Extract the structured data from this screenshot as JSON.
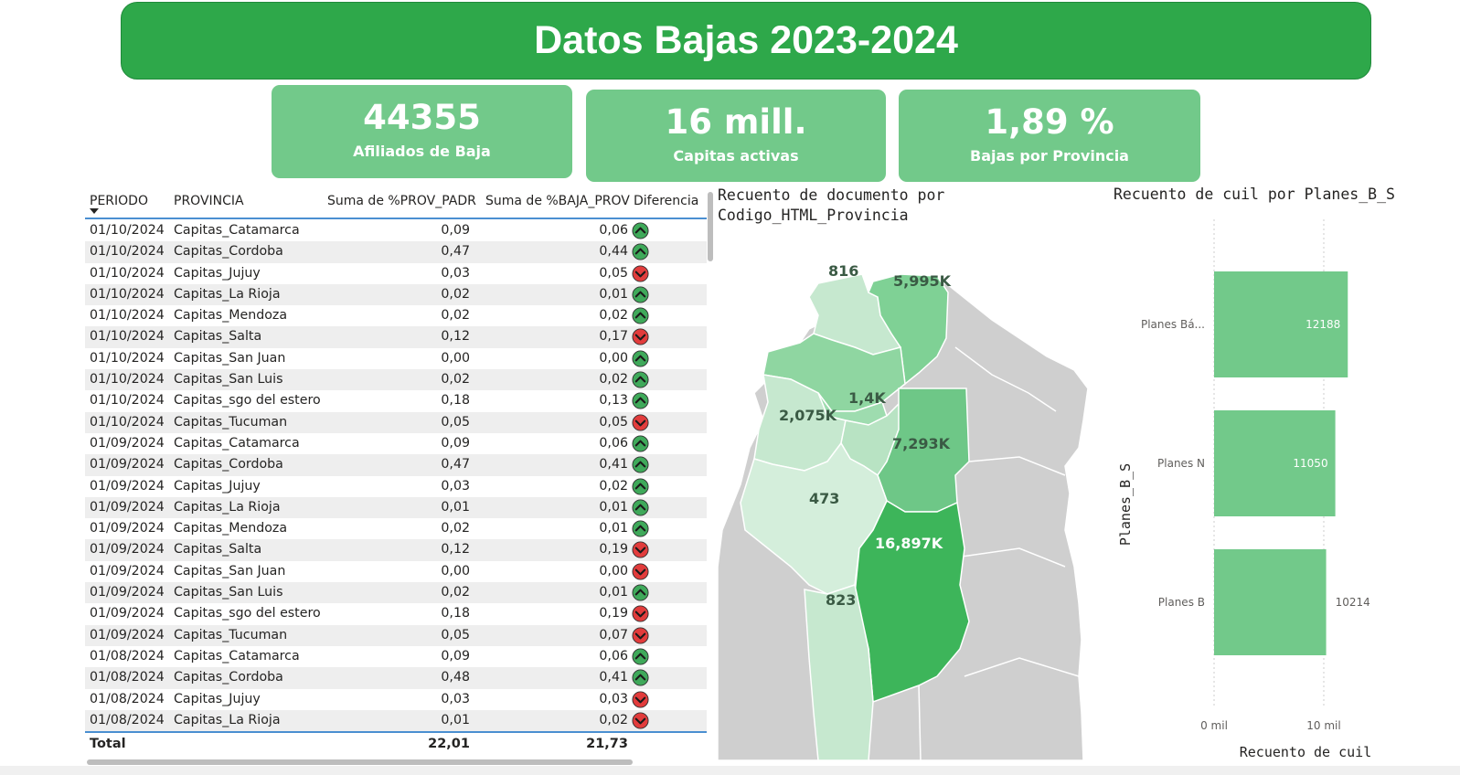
{
  "title": "Datos Bajas 2023-2024",
  "kpis": [
    {
      "value": "44355",
      "label": "Afiliados de Baja"
    },
    {
      "value": "16 mill.",
      "label": "Capitas activas"
    },
    {
      "value": "1,89 %",
      "label": "Bajas por Provincia"
    }
  ],
  "table": {
    "headers": [
      "PERIODO",
      "PROVINCIA",
      "Suma de %PROV_PADR",
      "Suma de %BAJA_PROV",
      "Diferencia"
    ],
    "rows": [
      [
        "01/10/2024",
        "Capitas_Catamarca",
        "0,09",
        "0,06",
        "up"
      ],
      [
        "01/10/2024",
        "Capitas_Cordoba",
        "0,47",
        "0,44",
        "up"
      ],
      [
        "01/10/2024",
        "Capitas_Jujuy",
        "0,03",
        "0,05",
        "down"
      ],
      [
        "01/10/2024",
        "Capitas_La Rioja",
        "0,02",
        "0,01",
        "up"
      ],
      [
        "01/10/2024",
        "Capitas_Mendoza",
        "0,02",
        "0,02",
        "up"
      ],
      [
        "01/10/2024",
        "Capitas_Salta",
        "0,12",
        "0,17",
        "down"
      ],
      [
        "01/10/2024",
        "Capitas_San Juan",
        "0,00",
        "0,00",
        "up"
      ],
      [
        "01/10/2024",
        "Capitas_San Luis",
        "0,02",
        "0,02",
        "up"
      ],
      [
        "01/10/2024",
        "Capitas_sgo del estero",
        "0,18",
        "0,13",
        "up"
      ],
      [
        "01/10/2024",
        "Capitas_Tucuman",
        "0,05",
        "0,05",
        "down"
      ],
      [
        "01/09/2024",
        "Capitas_Catamarca",
        "0,09",
        "0,06",
        "up"
      ],
      [
        "01/09/2024",
        "Capitas_Cordoba",
        "0,47",
        "0,41",
        "up"
      ],
      [
        "01/09/2024",
        "Capitas_Jujuy",
        "0,03",
        "0,02",
        "up"
      ],
      [
        "01/09/2024",
        "Capitas_La Rioja",
        "0,01",
        "0,01",
        "up"
      ],
      [
        "01/09/2024",
        "Capitas_Mendoza",
        "0,02",
        "0,01",
        "up"
      ],
      [
        "01/09/2024",
        "Capitas_Salta",
        "0,12",
        "0,19",
        "down"
      ],
      [
        "01/09/2024",
        "Capitas_San Juan",
        "0,00",
        "0,00",
        "down"
      ],
      [
        "01/09/2024",
        "Capitas_San Luis",
        "0,02",
        "0,01",
        "up"
      ],
      [
        "01/09/2024",
        "Capitas_sgo del estero",
        "0,18",
        "0,19",
        "down"
      ],
      [
        "01/09/2024",
        "Capitas_Tucuman",
        "0,05",
        "0,07",
        "down"
      ],
      [
        "01/08/2024",
        "Capitas_Catamarca",
        "0,09",
        "0,06",
        "up"
      ],
      [
        "01/08/2024",
        "Capitas_Cordoba",
        "0,48",
        "0,41",
        "up"
      ],
      [
        "01/08/2024",
        "Capitas_Jujuy",
        "0,03",
        "0,03",
        "down"
      ],
      [
        "01/08/2024",
        "Capitas_La Rioja",
        "0,01",
        "0,02",
        "down"
      ]
    ],
    "total": {
      "label": "Total",
      "a": "22,01",
      "b": "21,73"
    }
  },
  "map": {
    "title_line1": "Recuento de documento por",
    "title_line2": "Codigo_HTML_Provincia",
    "labels": [
      "816",
      "5,995K",
      "1,4K",
      "2,075K",
      "7,293K",
      "473",
      "16,897K",
      "823"
    ]
  },
  "bar": {
    "title": "Recuento de cuil por Planes_B_S",
    "ylabel": "Planes_B_S",
    "xlabel": "Recuento de cuil",
    "ticks": [
      "0 mil",
      "10 mil"
    ]
  },
  "chart_data": {
    "type": "bar",
    "orientation": "horizontal",
    "title": "Recuento de cuil por Planes_B_S",
    "categories": [
      "Planes Bá...",
      "Planes N",
      "Planes B"
    ],
    "values": [
      12188,
      11050,
      10214
    ],
    "xlabel": "Recuento de cuil",
    "ylabel": "Planes_B_S",
    "xlim": [
      0,
      15000
    ],
    "xticks": [
      "0 mil",
      "10 mil"
    ],
    "color": "#72c98a"
  },
  "colors": {
    "banner": "#2ea84a",
    "kpi": "#72c98a",
    "up": "#3fa95a",
    "down": "#e23c3c"
  }
}
